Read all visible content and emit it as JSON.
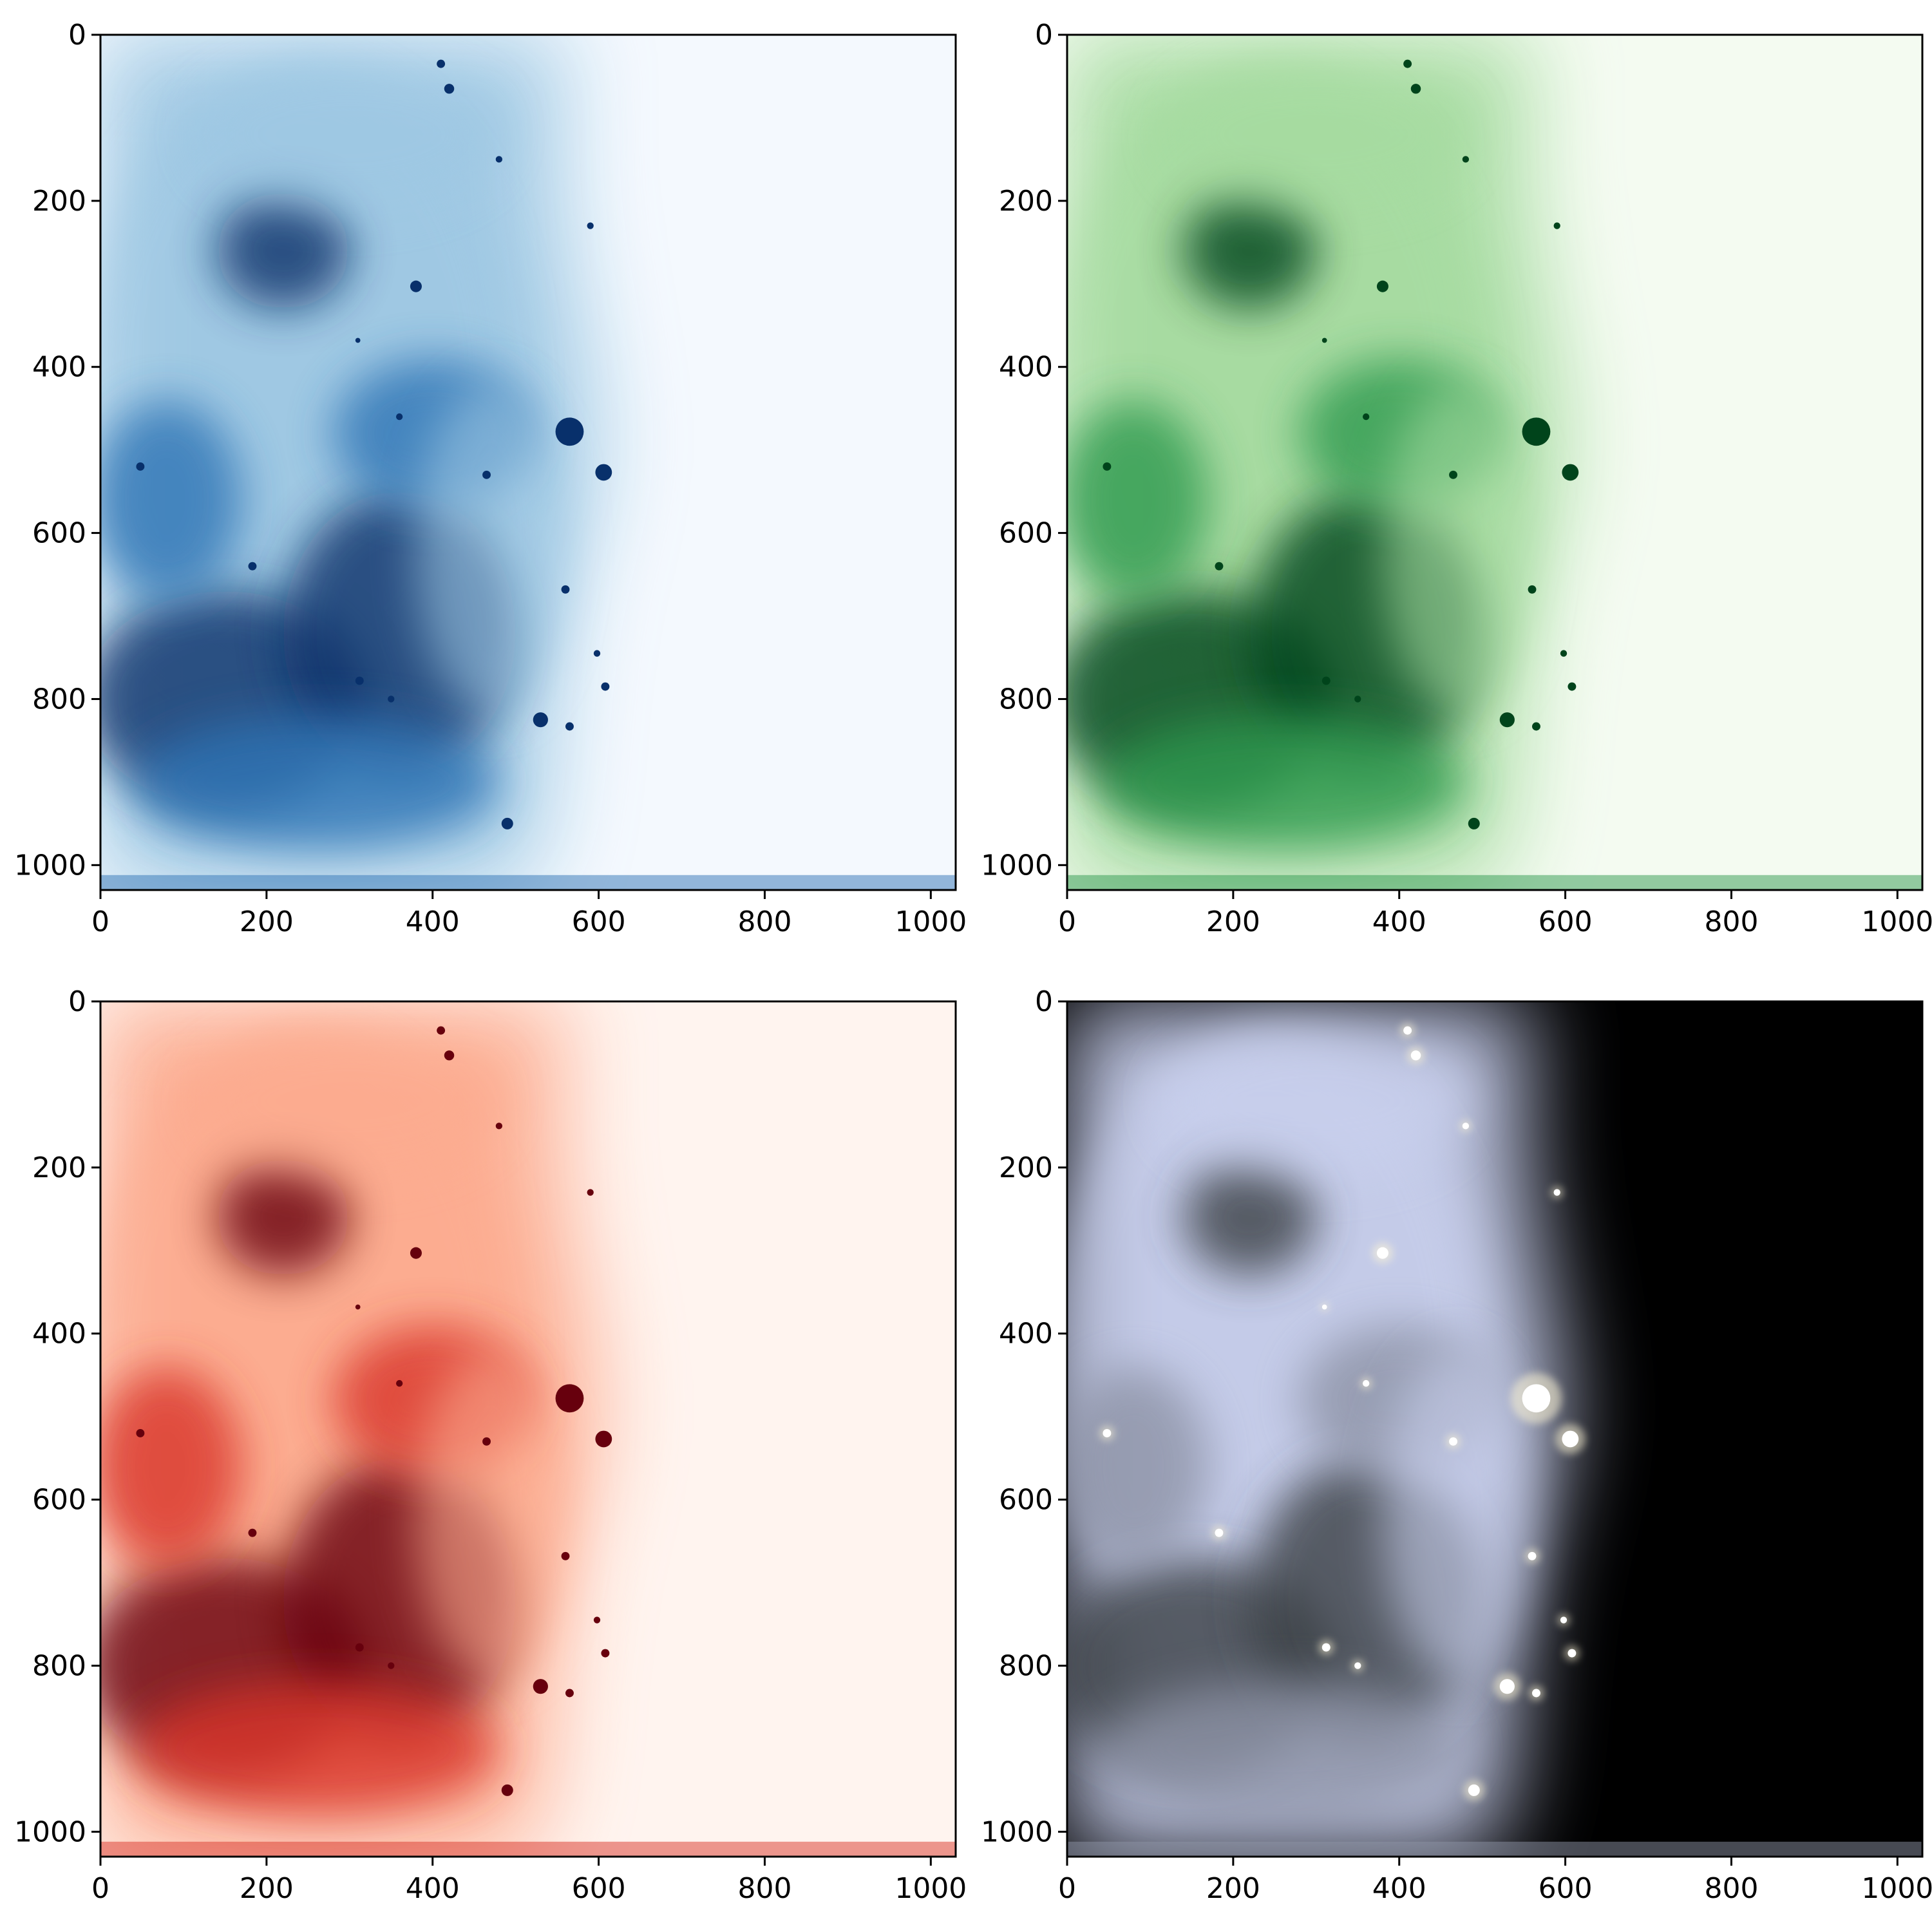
{
  "figure": {
    "panels": [
      {
        "id": "blue",
        "colormap": "Blues",
        "bg_color": "#f4f9fe",
        "dark_color": "#08306b",
        "mid_color": "#2f74b5",
        "light_color": "#9ec8e3",
        "star_color": "#08306b",
        "x_ticks": [
          0,
          200,
          400,
          600,
          800,
          1000
        ],
        "y_ticks": [
          0,
          200,
          400,
          600,
          800,
          1000
        ],
        "x_tick_labels": [
          "0",
          "200",
          "400",
          "600",
          "800",
          "1000"
        ],
        "y_tick_labels": [
          "0",
          "200",
          "400",
          "600",
          "800",
          "1000"
        ]
      },
      {
        "id": "green",
        "colormap": "Greens",
        "bg_color": "#f4fbf1",
        "dark_color": "#00441b",
        "mid_color": "#2f9a4f",
        "light_color": "#a6dba0",
        "star_color": "#00441b",
        "x_ticks": [
          0,
          200,
          400,
          600,
          800,
          1000
        ],
        "y_ticks": [
          0,
          200,
          400,
          600,
          800,
          1000
        ],
        "x_tick_labels": [
          "0",
          "200",
          "400",
          "600",
          "800",
          "1000"
        ],
        "y_tick_labels": [
          "0",
          "200",
          "400",
          "600",
          "800",
          "1000"
        ]
      },
      {
        "id": "red",
        "colormap": "Reds",
        "bg_color": "#fff4ef",
        "dark_color": "#67000d",
        "mid_color": "#d93529",
        "light_color": "#fcab8f",
        "star_color": "#67000d",
        "x_ticks": [
          0,
          200,
          400,
          600,
          800,
          1000
        ],
        "y_ticks": [
          0,
          200,
          400,
          600,
          800,
          1000
        ],
        "x_tick_labels": [
          "0",
          "200",
          "400",
          "600",
          "800",
          "1000"
        ],
        "y_tick_labels": [
          "0",
          "200",
          "400",
          "600",
          "800",
          "1000"
        ]
      },
      {
        "id": "composite",
        "colormap": "RGB composite",
        "bg_color": "#000000",
        "dark_color": "#3a3f45",
        "mid_color": "#8d93a6",
        "light_color": "#c9d0ee",
        "star_color": "#ffffff",
        "x_ticks": [
          0,
          200,
          400,
          600,
          800,
          1000
        ],
        "y_ticks": [
          0,
          200,
          400,
          600,
          800,
          1000
        ],
        "x_tick_labels": [
          "0",
          "200",
          "400",
          "600",
          "800",
          "1000"
        ],
        "y_tick_labels": [
          "0",
          "200",
          "400",
          "600",
          "800",
          "1000"
        ]
      }
    ],
    "axis_range": {
      "x": [
        0,
        1030
      ],
      "y": [
        0,
        1030
      ]
    },
    "stars": [
      {
        "x": 410,
        "y": 35,
        "r": 5
      },
      {
        "x": 420,
        "y": 65,
        "r": 6
      },
      {
        "x": 380,
        "y": 303,
        "r": 7
      },
      {
        "x": 565,
        "y": 478,
        "r": 17
      },
      {
        "x": 606,
        "y": 527,
        "r": 10
      },
      {
        "x": 530,
        "y": 825,
        "r": 9
      },
      {
        "x": 490,
        "y": 950,
        "r": 7
      },
      {
        "x": 48,
        "y": 520,
        "r": 5
      },
      {
        "x": 183,
        "y": 640,
        "r": 5
      },
      {
        "x": 560,
        "y": 668,
        "r": 5
      },
      {
        "x": 598,
        "y": 745,
        "r": 4
      },
      {
        "x": 608,
        "y": 785,
        "r": 5
      },
      {
        "x": 565,
        "y": 833,
        "r": 5
      },
      {
        "x": 590,
        "y": 230,
        "r": 4
      },
      {
        "x": 480,
        "y": 150,
        "r": 4
      },
      {
        "x": 310,
        "y": 368,
        "r": 3
      },
      {
        "x": 360,
        "y": 460,
        "r": 4
      },
      {
        "x": 465,
        "y": 530,
        "r": 5
      },
      {
        "x": 312,
        "y": 778,
        "r": 5
      },
      {
        "x": 350,
        "y": 800,
        "r": 4
      }
    ]
  }
}
